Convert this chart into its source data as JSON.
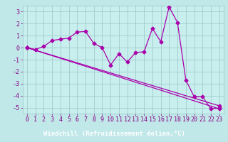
{
  "title": "",
  "xlabel": "Windchill (Refroidissement éolien,°C)",
  "bg_color": "#c0e8e8",
  "plot_bg_color": "#c8eeee",
  "line_color": "#aa00aa",
  "grid_color": "#a0cccc",
  "xlabel_bg_color": "#8800aa",
  "xlabel_text_color": "#ffffff",
  "tick_color": "#880088",
  "xlim": [
    -0.5,
    23.5
  ],
  "ylim": [
    -5.5,
    3.5
  ],
  "xticks": [
    0,
    1,
    2,
    3,
    4,
    5,
    6,
    7,
    8,
    9,
    10,
    11,
    12,
    13,
    14,
    15,
    16,
    17,
    18,
    19,
    20,
    21,
    22,
    23
  ],
  "yticks": [
    -5,
    -4,
    -3,
    -2,
    -1,
    0,
    1,
    2,
    3
  ],
  "line1_x": [
    0,
    1,
    2,
    3,
    4,
    5,
    6,
    7,
    8,
    9,
    10,
    11,
    12,
    13,
    14,
    15,
    16,
    17,
    18,
    19,
    20,
    21,
    22,
    23
  ],
  "line1_y": [
    0.0,
    -0.15,
    0.1,
    0.6,
    0.7,
    0.8,
    1.3,
    1.35,
    0.35,
    0.0,
    -1.45,
    -0.5,
    -1.2,
    -0.4,
    -0.35,
    1.6,
    0.5,
    3.4,
    2.1,
    -2.7,
    -4.1,
    -4.1,
    -5.1,
    -5.05
  ],
  "line2_x": [
    0,
    23
  ],
  "line2_y": [
    0.0,
    -4.85
  ],
  "line3_x": [
    0,
    23
  ],
  "line3_y": [
    0.0,
    -5.1
  ],
  "marker_size": 2.5,
  "lw": 0.9,
  "font_size_tick": 6,
  "font_size_xlabel": 6.5
}
